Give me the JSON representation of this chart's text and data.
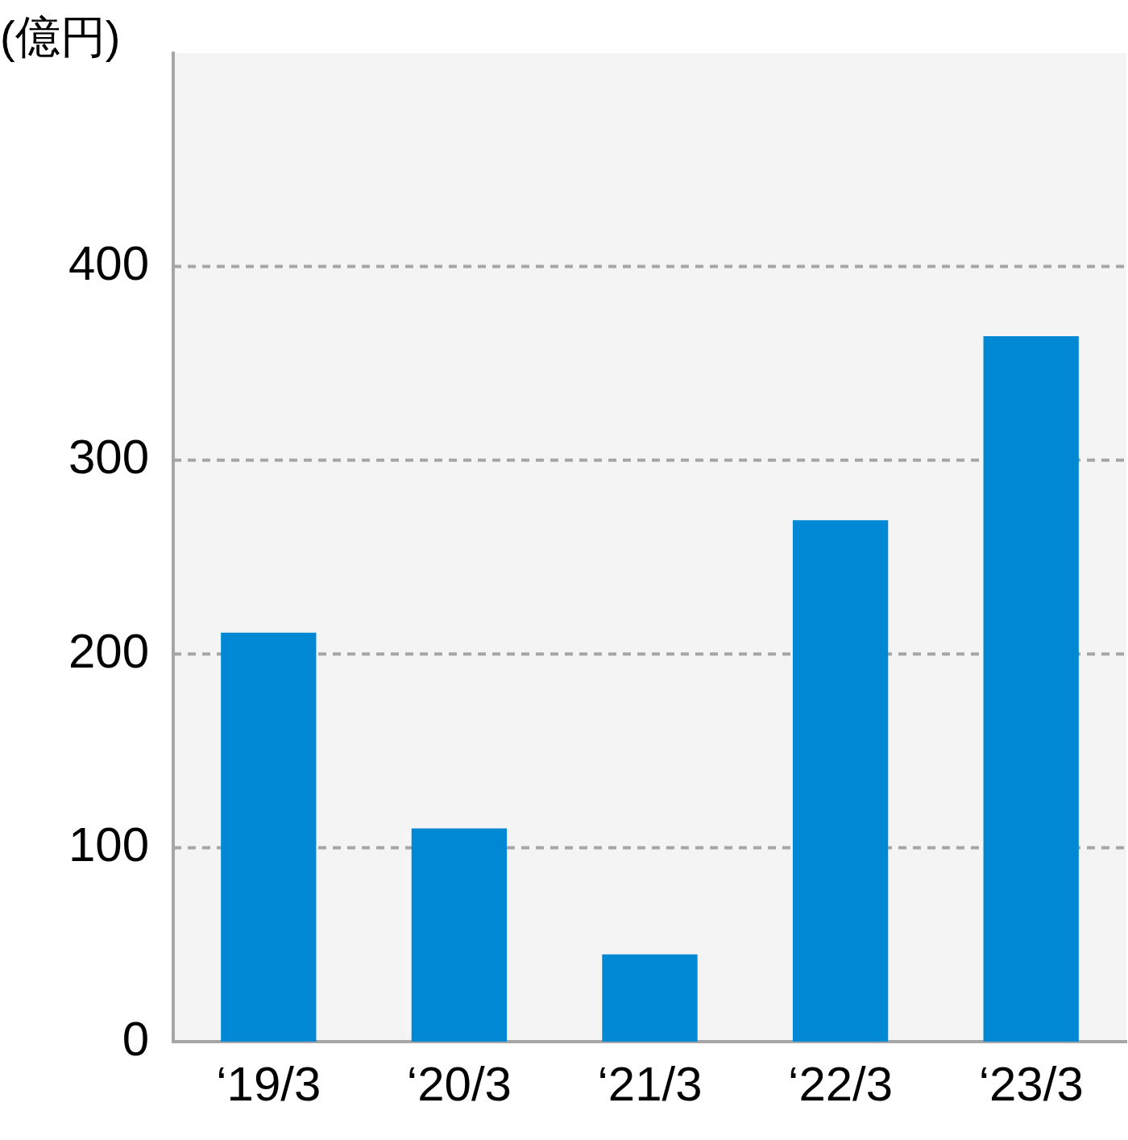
{
  "chart_data": {
    "type": "bar",
    "ylabel": "(億円)",
    "categories": [
      "‘19/3",
      "‘20/3",
      "‘21/3",
      "‘22/3",
      "‘23/3"
    ],
    "values": [
      211,
      110,
      45,
      269,
      364
    ],
    "color": "#0088d4",
    "ylim": [
      0,
      510
    ],
    "yticks": [
      0,
      100,
      200,
      300,
      400
    ],
    "grid": "y",
    "line_style": "dashed",
    "legend": false
  }
}
